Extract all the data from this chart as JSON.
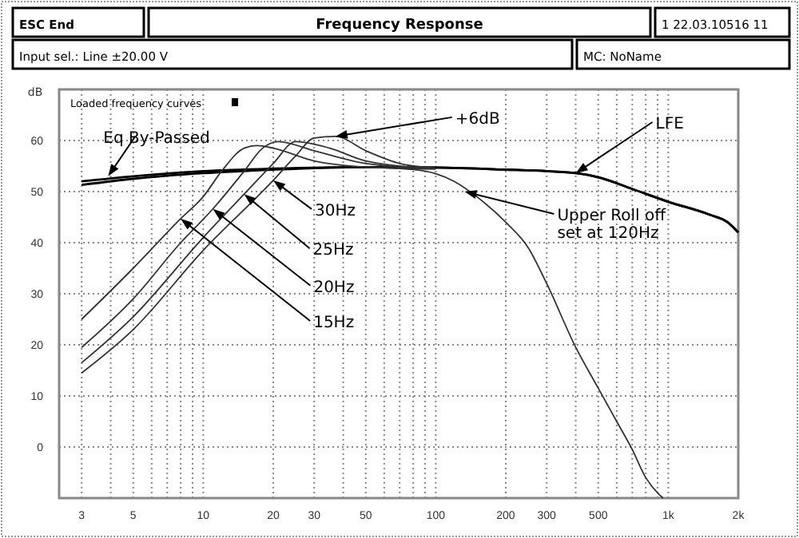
{
  "chart_data": {
    "type": "line",
    "title": "Frequency Response",
    "ylabel": "dB",
    "annotations": [
      "ESC End",
      "1 22.03.10516 11",
      "Input sel.: Line ±20.00 V",
      "MC: NoName",
      "Loaded frequency curves",
      {
        "text": "Eq By-Passed",
        "x": 3.9,
        "y": 53
      },
      {
        "text": "+6dB",
        "x": 37,
        "y": 60.8
      },
      {
        "text": "LFE",
        "x": 400,
        "y": 53.6
      },
      {
        "text": "Upper Roll off\nset at 120Hz",
        "x": 133,
        "y": 50
      },
      {
        "text": "30Hz",
        "x": 20,
        "y": 52.2
      },
      {
        "text": "25Hz",
        "x": 15,
        "y": 49.5
      },
      {
        "text": "20Hz",
        "x": 11,
        "y": 46.6
      },
      {
        "text": "15Hz",
        "x": 8,
        "y": 44.7
      }
    ],
    "xlim": [
      2.4,
      2000
    ],
    "ylim": [
      -10,
      70
    ],
    "log": "x",
    "xticks": [
      3,
      {
        "value": 4,
        "label": null
      },
      5,
      {
        "value": 6,
        "label": null
      },
      {
        "value": 7,
        "label": null
      },
      {
        "value": 8,
        "label": null
      },
      {
        "value": 9,
        "label": null
      },
      10,
      20,
      30,
      {
        "value": 40,
        "label": null
      },
      50,
      {
        "value": 60,
        "label": null
      },
      {
        "value": 70,
        "label": null
      },
      {
        "value": 80,
        "label": null
      },
      {
        "value": 90,
        "label": null
      },
      100,
      200,
      300,
      {
        "value": 400,
        "label": null
      },
      500,
      {
        "value": 600,
        "label": null
      },
      {
        "value": 700,
        "label": null
      },
      {
        "value": 800,
        "label": null
      },
      {
        "value": 900,
        "label": null
      },
      {
        "value": 1000,
        "label": "1k"
      },
      {
        "value": 2000,
        "label": "2k"
      }
    ],
    "yticks": [
      0,
      10,
      20,
      30,
      40,
      50,
      60
    ],
    "grid": true,
    "marker": "none",
    "line_style": "solid",
    "series": [
      {
        "color": "#000000",
        "x": [
          3,
          5,
          10,
          20,
          50,
          100,
          200,
          300,
          400,
          500,
          700,
          1000,
          1500,
          1800,
          2000
        ],
        "values": [
          52,
          53,
          54,
          54.5,
          54.8,
          54.7,
          54.3,
          54,
          53.6,
          52.8,
          50.5,
          48,
          45.5,
          44,
          42
        ]
      },
      {
        "color": "#000000",
        "x": [
          3,
          5,
          10,
          20,
          50,
          100,
          200,
          300,
          400,
          500,
          700,
          1000,
          1500,
          1800,
          2000
        ],
        "values": [
          51.3,
          52.5,
          53.6,
          54.3,
          54.8,
          54.7,
          54.3,
          54,
          53.6,
          52.8,
          50.5,
          48,
          45.5,
          44,
          42
        ]
      },
      {
        "color": "#333333",
        "x": [
          50,
          80,
          100,
          120,
          150,
          200,
          250,
          300,
          400,
          500,
          600,
          700,
          800,
          900,
          950
        ],
        "values": [
          54.8,
          54.3,
          53.5,
          52,
          49,
          44,
          39,
          32,
          19.5,
          11.5,
          5,
          -0.5,
          -6,
          -9,
          -10
        ]
      },
      {
        "color": "#333333",
        "x": [
          3,
          5,
          8,
          10,
          12,
          15,
          17,
          20,
          30,
          50,
          100
        ],
        "values": [
          25,
          35,
          44.7,
          49,
          54,
          58.5,
          59,
          58.5,
          56,
          54.8,
          54.4
        ]
      },
      {
        "color": "#333333",
        "x": [
          3,
          5,
          8,
          11,
          15,
          18,
          21,
          30,
          50,
          100
        ],
        "values": [
          19.5,
          29,
          40,
          46.6,
          54,
          58.5,
          59.8,
          58,
          55.5,
          54.5
        ]
      },
      {
        "color": "#333333",
        "x": [
          3,
          5,
          10,
          15,
          20,
          25,
          35,
          50,
          100
        ],
        "values": [
          16.5,
          25.5,
          41,
          49.5,
          55.5,
          59.8,
          58.5,
          56,
          54.5
        ]
      },
      {
        "color": "#333333",
        "x": [
          3,
          5,
          10,
          20,
          25,
          30,
          37,
          50,
          70,
          100
        ],
        "values": [
          14.5,
          23,
          38.5,
          52.2,
          57,
          60.5,
          60.8,
          58,
          55.5,
          54.6
        ]
      }
    ]
  }
}
